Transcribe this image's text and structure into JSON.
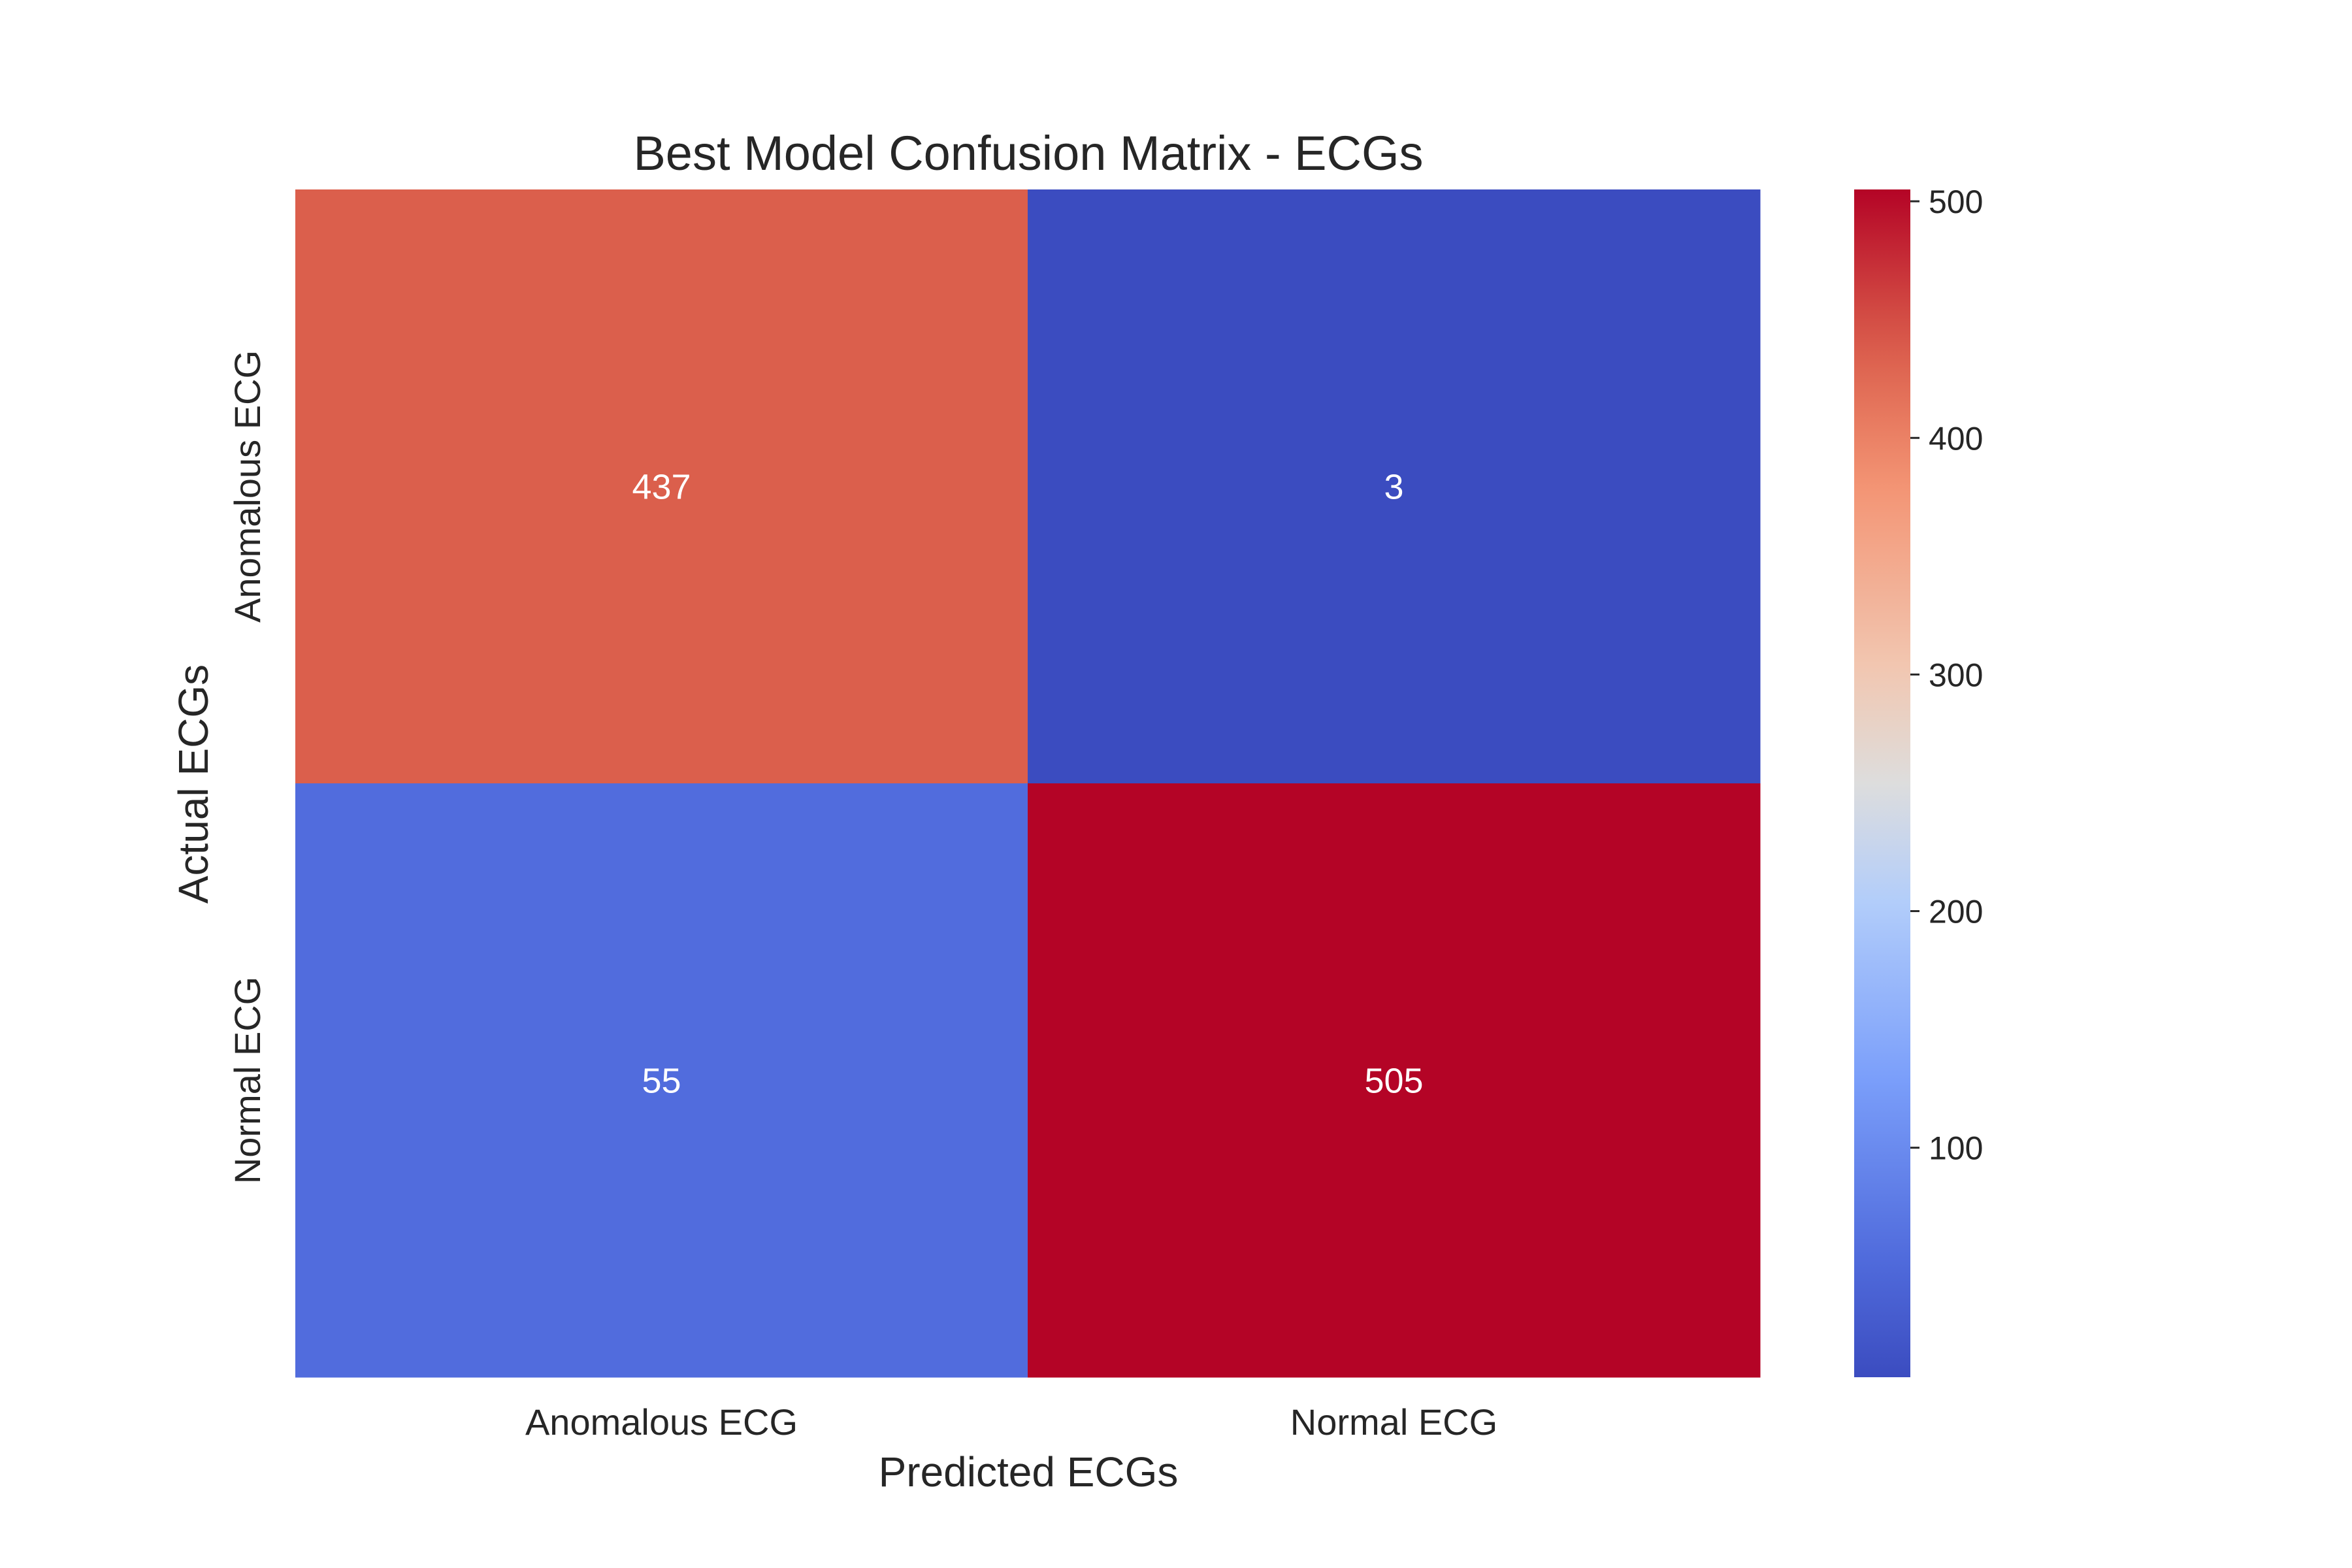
{
  "chart_data": {
    "type": "heatmap",
    "title": "Best Model Confusion Matrix - ECGs",
    "xlabel": "Predicted ECGs",
    "ylabel": "Actual ECGs",
    "x_categories": [
      "Anomalous ECG",
      "Normal ECG"
    ],
    "y_categories": [
      "Anomalous ECG",
      "Normal ECG"
    ],
    "matrix": [
      [
        437,
        3
      ],
      [
        55,
        505
      ]
    ],
    "colormap": "coolwarm",
    "colorbar": {
      "vmin": 3,
      "vmax": 505,
      "ticks": [
        100,
        200,
        300,
        400,
        500
      ],
      "tick_labels": [
        "100",
        "200",
        "300",
        "400",
        "500"
      ]
    },
    "annotation_color": "#ffffff",
    "grid": false,
    "legend": "colorbar-right"
  }
}
